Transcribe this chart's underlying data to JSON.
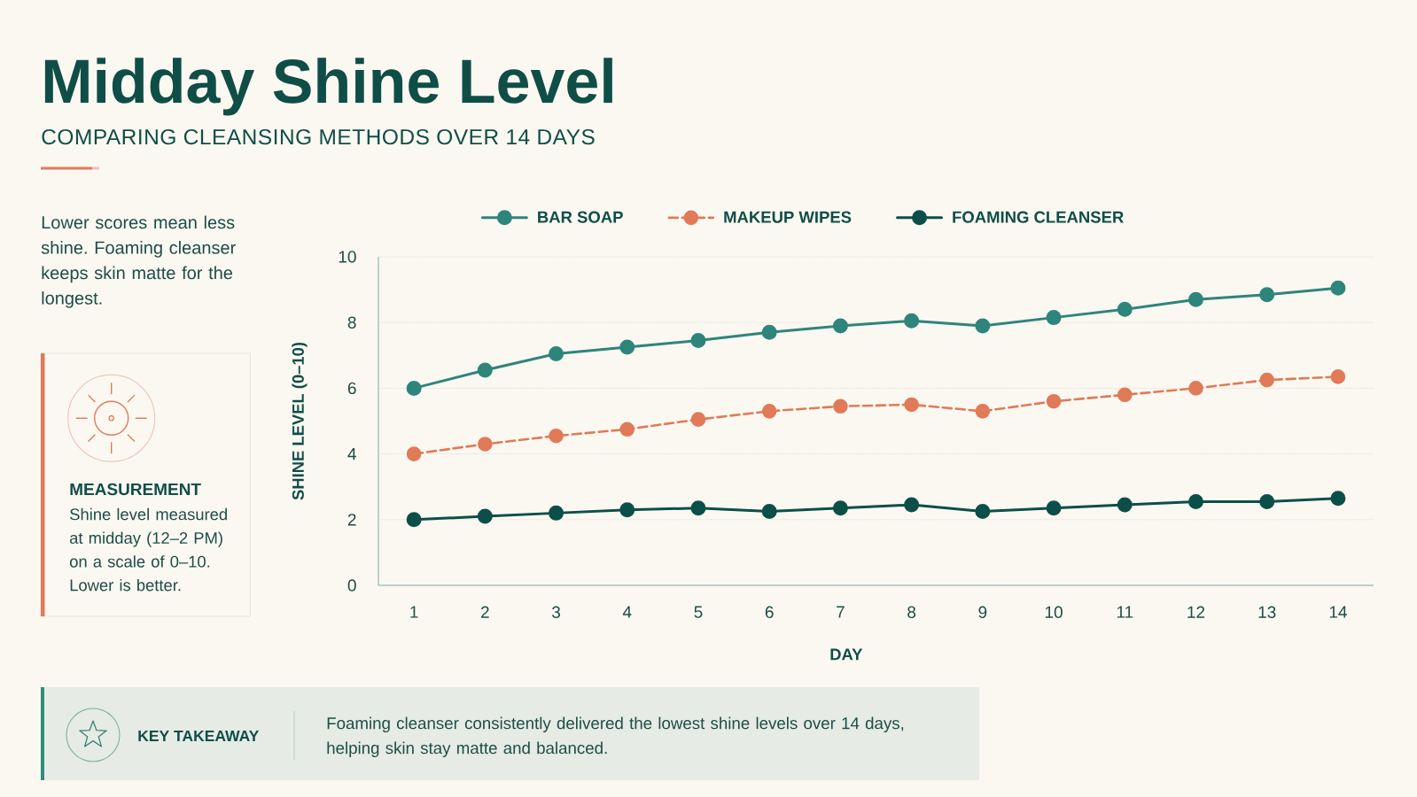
{
  "chart_data": {
    "type": "line",
    "title": "Midday Shine Level",
    "subtitle": "COMPARING CLEANSING METHODS OVER 14 DAYS",
    "xlabel": "DAY",
    "ylabel": "SHINE LEVEL (0–10)",
    "annotations": [
      "Lower scores mean less shine. Foaming cleanser keeps skin matte for the longest.",
      "MEASUREMENT",
      "Shine level measured at midday (12–2 PM) on a scale of 0–10. Lower is better.",
      "KEY TAKEAWAY",
      "Foaming cleanser consistently delivered the lowest shine levels over 14 days, helping skin stay matte and balanced."
    ],
    "x": [
      1,
      2,
      3,
      4,
      5,
      6,
      7,
      8,
      9,
      10,
      11,
      12,
      13,
      14
    ],
    "series": [
      {
        "name": "BAR SOAP",
        "color": "#2e857b",
        "values": [
          6.0,
          6.55,
          7.05,
          7.25,
          7.45,
          7.7,
          7.9,
          8.05,
          7.9,
          8.15,
          8.4,
          8.7,
          8.85,
          9.05
        ]
      },
      {
        "name": "MAKEUP WIPES",
        "color": "#e07a58",
        "line_style": "dashed",
        "values": [
          4.0,
          4.3,
          4.55,
          4.75,
          5.05,
          5.3,
          5.45,
          5.5,
          5.3,
          5.6,
          5.8,
          6.0,
          6.25,
          6.35
        ]
      },
      {
        "name": "FOAMING CLEANSER",
        "color": "#0b4f48",
        "values": [
          2.0,
          2.1,
          2.2,
          2.3,
          2.35,
          2.25,
          2.35,
          2.45,
          2.25,
          2.35,
          2.45,
          2.55,
          2.55,
          2.65
        ]
      }
    ],
    "xlim": [
      0.5,
      14.5
    ],
    "xticks": [
      1,
      2,
      3,
      4,
      5,
      6,
      7,
      8,
      9,
      10,
      11,
      12,
      13,
      14
    ],
    "ylim": [
      0,
      10
    ],
    "yticks": [
      0,
      2,
      4,
      6,
      8,
      10
    ],
    "grid": "y",
    "legend": "top",
    "marker": "circle",
    "line_style": "solid"
  }
}
